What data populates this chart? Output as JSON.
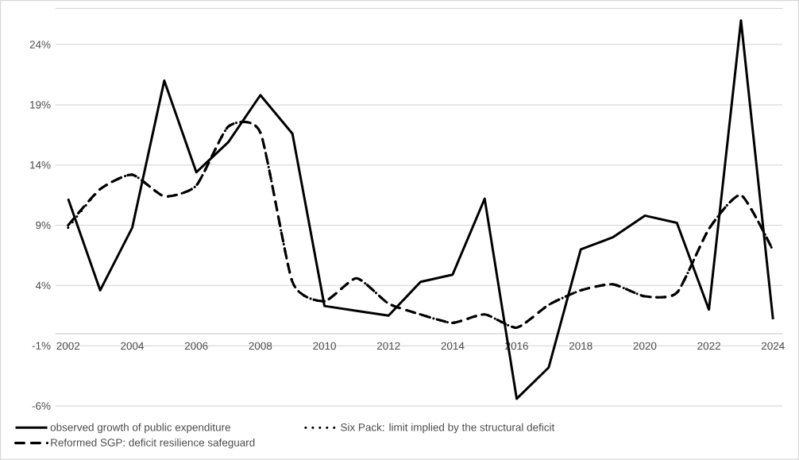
{
  "chart_data": {
    "type": "line",
    "categories": [
      "2002",
      null,
      "2004",
      null,
      "2006",
      null,
      "2008",
      null,
      "2010",
      null,
      "2012",
      null,
      "2014",
      null,
      "2016",
      null,
      "2018",
      null,
      "2020",
      null,
      "2022",
      null,
      "2024"
    ],
    "series": [
      {
        "name": "observed growth of public expenditure",
        "color": "#000000",
        "line_style": "solid",
        "values": [
          11.2,
          3.6,
          8.8,
          21.0,
          13.4,
          15.9,
          19.8,
          16.6,
          2.3,
          1.9,
          1.5,
          4.3,
          4.9,
          11.2,
          -5.4,
          -2.8,
          7.0,
          8.0,
          9.8,
          9.2,
          2.0,
          26.0,
          1.2
        ]
      },
      {
        "name": "Six Pack: limit implied by the structural deficit",
        "color": "#000000",
        "line_style": "dotted",
        "values": [
          8.8,
          12.0,
          13.2,
          11.4,
          12.3,
          17.2,
          16.7,
          4.3,
          2.7,
          4.6,
          2.5,
          1.6,
          0.9,
          1.6,
          0.5,
          2.4,
          3.6,
          4.1,
          3.1,
          3.4,
          8.7,
          11.5,
          6.9
        ]
      },
      {
        "name": "Reformed SGP: deficit resilience safeguard",
        "color": "#000000",
        "line_style": "dashed",
        "values": [
          9.0,
          12.0,
          13.2,
          11.4,
          12.3,
          17.2,
          16.7,
          4.3,
          2.7,
          4.6,
          2.5,
          1.6,
          0.9,
          1.6,
          0.5,
          2.4,
          3.6,
          4.1,
          3.1,
          3.4,
          8.7,
          11.5,
          6.9
        ]
      }
    ],
    "ylim": [
      -6,
      27
    ],
    "yticks": [
      {
        "value": -6,
        "label": "-6%"
      },
      {
        "value": -1,
        "label": "-1%"
      },
      {
        "value": 4,
        "label": "4%"
      },
      {
        "value": 9,
        "label": "9%"
      },
      {
        "value": 14,
        "label": "14%"
      },
      {
        "value": 19,
        "label": "19%"
      },
      {
        "value": 24,
        "label": "24%"
      }
    ],
    "grid": "y",
    "legend": "bottom"
  }
}
